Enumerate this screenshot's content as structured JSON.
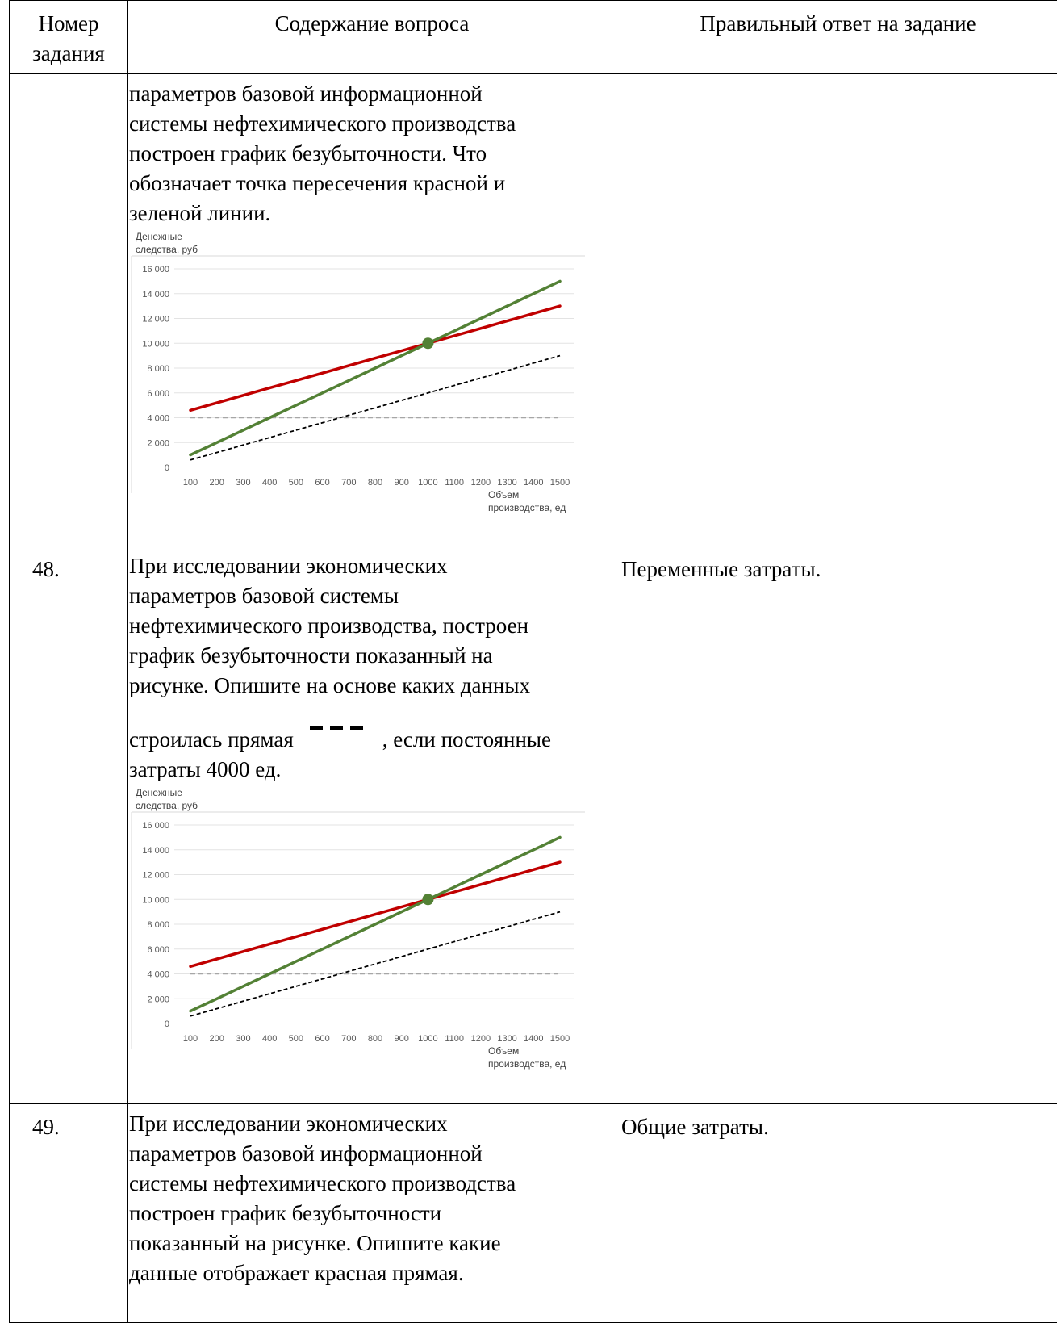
{
  "header": {
    "col1": [
      "Номер",
      "задания"
    ],
    "col2": "Содержание вопроса",
    "col3": "Правильный ответ на задание"
  },
  "rows": [
    {
      "number": "",
      "question_lines": [
        "параметров базовой информационной",
        "системы нефтехимического производства",
        "построен график безубыточности. Что",
        "обозначает точка пересечения красной и",
        "зеленой линии."
      ],
      "answer": ""
    },
    {
      "number": "48.",
      "question_lines": [
        "При исследовании экономических",
        "параметров базовой системы",
        "нефтехимического производства, построен",
        "график безубыточности показанный на",
        "рисунке. Опишите на основе каких данных"
      ],
      "question_dash_before": "строилась прямая",
      "question_dash_after": ", если постоянные",
      "question_last": "затраты 4000 ед.",
      "answer": "Переменные затраты."
    },
    {
      "number": "49.",
      "question_lines": [
        "При исследовании экономических",
        "параметров базовой информационной",
        "системы нефтехимического производства",
        "построен график безубыточности",
        "показанный на рисунке. Опишите какие",
        "данные отображает красная прямая."
      ],
      "answer": "Общие затраты."
    }
  ],
  "chart_data": [
    {
      "type": "line",
      "ylabel": "Денежные следства, руб",
      "xlabel": "Объем производства, ед",
      "x": [
        100,
        200,
        300,
        400,
        500,
        600,
        700,
        800,
        900,
        1000,
        1100,
        1200,
        1300,
        1400,
        1500
      ],
      "ylim": [
        0,
        16000
      ],
      "yticks": [
        "0",
        "2 000",
        "4 000",
        "6 000",
        "8 000",
        "10 000",
        "12 000",
        "14 000",
        "16 000"
      ],
      "xticks": [
        "100",
        "200",
        "300",
        "400",
        "500",
        "600",
        "700",
        "800",
        "900",
        "1000",
        "1100",
        "1200",
        "1300",
        "1400",
        "1500"
      ],
      "grid": true,
      "series": [
        {
          "color": "#c00000",
          "style": "solid",
          "values": [
            4600,
            5200,
            5800,
            6400,
            7000,
            7600,
            8200,
            8800,
            9400,
            10000,
            10600,
            11200,
            11800,
            12400,
            13000
          ]
        },
        {
          "color": "#538135",
          "style": "solid",
          "values": [
            1000,
            2000,
            3000,
            4000,
            5000,
            6000,
            7000,
            8000,
            9000,
            10000,
            11000,
            12000,
            13000,
            14000,
            15000
          ]
        },
        {
          "color": "#000000",
          "style": "dashed",
          "values": [
            600,
            1200,
            1800,
            2400,
            3000,
            3600,
            4200,
            4800,
            5400,
            6000,
            6600,
            7200,
            7800,
            8400,
            9000
          ]
        },
        {
          "color": "#a6a6a6",
          "style": "dashed",
          "values": [
            4000,
            4000,
            4000,
            4000,
            4000,
            4000,
            4000,
            4000,
            4000,
            4000,
            4000,
            4000,
            4000,
            4000,
            4000
          ]
        }
      ],
      "marker": {
        "x": 1000,
        "y": 10000,
        "color": "#538135"
      }
    },
    {
      "type": "line",
      "ylabel": "Денежные следства, руб",
      "xlabel": "Объем производства, ед",
      "x": [
        100,
        200,
        300,
        400,
        500,
        600,
        700,
        800,
        900,
        1000,
        1100,
        1200,
        1300,
        1400,
        1500
      ],
      "ylim": [
        0,
        16000
      ],
      "yticks": [
        "0",
        "2 000",
        "4 000",
        "6 000",
        "8 000",
        "10 000",
        "12 000",
        "14 000",
        "16 000"
      ],
      "xticks": [
        "100",
        "200",
        "300",
        "400",
        "500",
        "600",
        "700",
        "800",
        "900",
        "1000",
        "1100",
        "1200",
        "1300",
        "1400",
        "1500"
      ],
      "grid": true,
      "series": [
        {
          "color": "#c00000",
          "style": "solid",
          "values": [
            4600,
            5200,
            5800,
            6400,
            7000,
            7600,
            8200,
            8800,
            9400,
            10000,
            10600,
            11200,
            11800,
            12400,
            13000
          ]
        },
        {
          "color": "#538135",
          "style": "solid",
          "values": [
            1000,
            2000,
            3000,
            4000,
            5000,
            6000,
            7000,
            8000,
            9000,
            10000,
            11000,
            12000,
            13000,
            14000,
            15000
          ]
        },
        {
          "color": "#000000",
          "style": "dashed",
          "values": [
            600,
            1200,
            1800,
            2400,
            3000,
            3600,
            4200,
            4800,
            5400,
            6000,
            6600,
            7200,
            7800,
            8400,
            9000
          ]
        },
        {
          "color": "#a6a6a6",
          "style": "dashed",
          "values": [
            4000,
            4000,
            4000,
            4000,
            4000,
            4000,
            4000,
            4000,
            4000,
            4000,
            4000,
            4000,
            4000,
            4000,
            4000
          ]
        }
      ],
      "marker": {
        "x": 1000,
        "y": 10000,
        "color": "#538135"
      }
    }
  ]
}
